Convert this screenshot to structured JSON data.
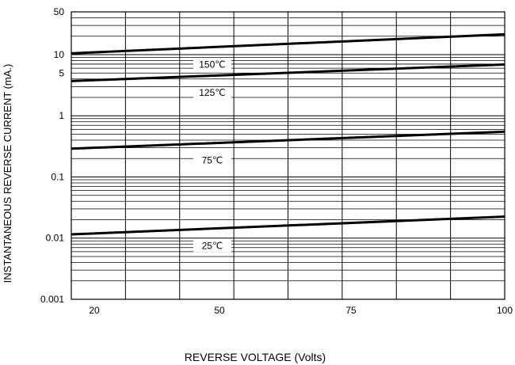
{
  "chart_data": {
    "type": "line",
    "title": "",
    "xlabel": "REVERSE VOLTAGE (Volts)",
    "ylabel": "INSTANTANEOUS REVERSE CURRENT (mA.)",
    "x_scale": "linear",
    "y_scale": "log",
    "xlim": [
      20,
      100
    ],
    "ylim": [
      0.001,
      50
    ],
    "x_ticks": [
      "20",
      "50",
      "75",
      "100"
    ],
    "y_ticks": [
      "50",
      "10",
      "5",
      "1",
      "0.1",
      "0.01",
      "0.001"
    ],
    "grid": true,
    "series": [
      {
        "name": "150℃",
        "x": [
          20,
          100
        ],
        "y": [
          10.5,
          21.5
        ]
      },
      {
        "name": "125℃",
        "x": [
          20,
          100
        ],
        "y": [
          3.7,
          6.9
        ]
      },
      {
        "name": "75℃",
        "x": [
          20,
          100
        ],
        "y": [
          0.29,
          0.55
        ]
      },
      {
        "name": "25℃",
        "x": [
          20,
          100
        ],
        "y": [
          0.0115,
          0.0225
        ]
      }
    ]
  }
}
